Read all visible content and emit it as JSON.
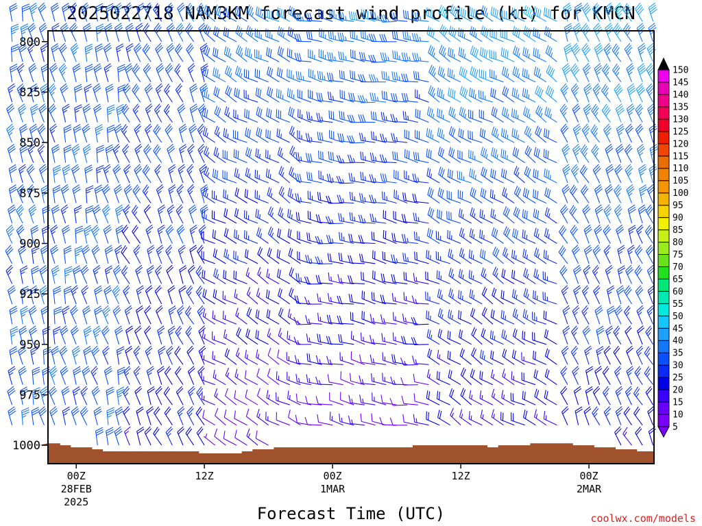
{
  "chart_data": {
    "type": "wind-barb-time-height",
    "title": "2025022718 NAM3KM forecast wind profile (kt) for KMCN",
    "xlabel": "Forecast Time (UTC)",
    "ylabel": "",
    "credit": "coolwx.com/models",
    "y_axis": {
      "range_hPa": [
        1010,
        790
      ],
      "ticks": [
        800,
        825,
        850,
        875,
        900,
        925,
        950,
        975,
        1000
      ],
      "levels_hPa": [
        790,
        800,
        810,
        820,
        830,
        840,
        850,
        860,
        870,
        880,
        890,
        900,
        910,
        920,
        930,
        940,
        950,
        960,
        970,
        980,
        990,
        1000
      ]
    },
    "x_axis": {
      "hours": [
        0,
        1,
        2,
        3,
        4,
        5,
        6,
        7,
        8,
        9,
        10,
        11,
        12,
        13,
        14,
        15,
        16,
        17,
        18,
        19,
        20,
        21,
        22,
        23,
        24,
        25,
        26,
        27,
        28,
        29,
        30,
        31,
        32,
        33,
        34,
        35,
        36,
        37,
        38,
        39,
        40,
        41,
        42,
        43,
        44,
        45,
        46,
        47,
        48,
        49,
        50,
        51,
        52,
        53,
        54,
        55,
        56,
        57,
        58,
        59,
        60
      ],
      "ticks": [
        {
          "hour": 6,
          "lines": [
            "00Z",
            "28FEB",
            "2025"
          ]
        },
        {
          "hour": 18,
          "lines": [
            "12Z"
          ]
        },
        {
          "hour": 30,
          "lines": [
            "00Z",
            "1MAR"
          ]
        },
        {
          "hour": 42,
          "lines": [
            "12Z"
          ]
        },
        {
          "hour": 54,
          "lines": [
            "00Z",
            "2MAR"
          ]
        }
      ]
    },
    "wind_regimes": [
      {
        "from_hour": 0,
        "to_hour": 11,
        "direction_deg": 345,
        "speed_low_kt": 30,
        "speed_high_kt": 30
      },
      {
        "from_hour": 11,
        "to_hour": 19,
        "direction_deg": 335,
        "speed_low_kt": 20,
        "speed_high_kt": 30
      },
      {
        "from_hour": 19,
        "to_hour": 28,
        "direction_deg": 300,
        "speed_low_kt": 10,
        "speed_high_kt": 35
      },
      {
        "from_hour": 28,
        "to_hour": 40,
        "direction_deg": 280,
        "speed_low_kt": 10,
        "speed_high_kt": 35
      },
      {
        "from_hour": 40,
        "to_hour": 52,
        "direction_deg": 300,
        "speed_low_kt": 15,
        "speed_high_kt": 40
      },
      {
        "from_hour": 52,
        "to_hour": 60,
        "direction_deg": 335,
        "speed_low_kt": 20,
        "speed_high_kt": 40
      }
    ],
    "surface_pressure_hPa": [
      [
        0,
        1000
      ],
      [
        1,
        1000
      ],
      [
        2,
        1000
      ],
      [
        3,
        999
      ],
      [
        4,
        999
      ],
      [
        5,
        1000
      ],
      [
        6,
        1001
      ],
      [
        7,
        1001
      ],
      [
        8,
        1002
      ],
      [
        9,
        1003
      ],
      [
        10,
        1003
      ],
      [
        11,
        1003
      ],
      [
        12,
        1003
      ],
      [
        13,
        1003
      ],
      [
        14,
        1003
      ],
      [
        15,
        1003
      ],
      [
        16,
        1003
      ],
      [
        17,
        1003
      ],
      [
        18,
        1004
      ],
      [
        19,
        1004
      ],
      [
        20,
        1004
      ],
      [
        21,
        1004
      ],
      [
        22,
        1003
      ],
      [
        23,
        1002
      ],
      [
        24,
        1002
      ],
      [
        25,
        1001
      ],
      [
        26,
        1001
      ],
      [
        27,
        1001
      ],
      [
        28,
        1001
      ],
      [
        29,
        1001
      ],
      [
        30,
        1001
      ],
      [
        31,
        1001
      ],
      [
        32,
        1001
      ],
      [
        33,
        1001
      ],
      [
        34,
        1001
      ],
      [
        35,
        1001
      ],
      [
        36,
        1001
      ],
      [
        37,
        1001
      ],
      [
        38,
        1000
      ],
      [
        39,
        1000
      ],
      [
        40,
        1000
      ],
      [
        41,
        1000
      ],
      [
        42,
        1000
      ],
      [
        43,
        1000
      ],
      [
        44,
        1000
      ],
      [
        45,
        1001
      ],
      [
        46,
        1000
      ],
      [
        47,
        1000
      ],
      [
        48,
        1000
      ],
      [
        49,
        999
      ],
      [
        50,
        999
      ],
      [
        51,
        999
      ],
      [
        52,
        999
      ],
      [
        53,
        1000
      ],
      [
        54,
        1000
      ],
      [
        55,
        1001
      ],
      [
        56,
        1001
      ],
      [
        57,
        1002
      ],
      [
        58,
        1002
      ],
      [
        59,
        1003
      ],
      [
        60,
        1003
      ]
    ],
    "colorbar": {
      "ticks": [
        5,
        10,
        15,
        20,
        25,
        30,
        35,
        40,
        45,
        50,
        55,
        60,
        65,
        70,
        75,
        80,
        85,
        90,
        95,
        100,
        105,
        110,
        115,
        120,
        125,
        130,
        135,
        140,
        145,
        150
      ],
      "colors": [
        "#7b00ff",
        "#6a00ff",
        "#3a00ff",
        "#0000e6",
        "#0a2af5",
        "#0a50ff",
        "#1478ff",
        "#1ea0ff",
        "#14c8ff",
        "#00eadd",
        "#00e8b4",
        "#00e67a",
        "#20e020",
        "#6ae21a",
        "#9aec1e",
        "#c8f014",
        "#f0f000",
        "#f5d200",
        "#f5b400",
        "#f59600",
        "#f08200",
        "#eb6e00",
        "#f04600",
        "#f01e00",
        "#f0002a",
        "#f00054",
        "#f0008a",
        "#e800b4",
        "#f000f0",
        "#000000"
      ]
    }
  }
}
